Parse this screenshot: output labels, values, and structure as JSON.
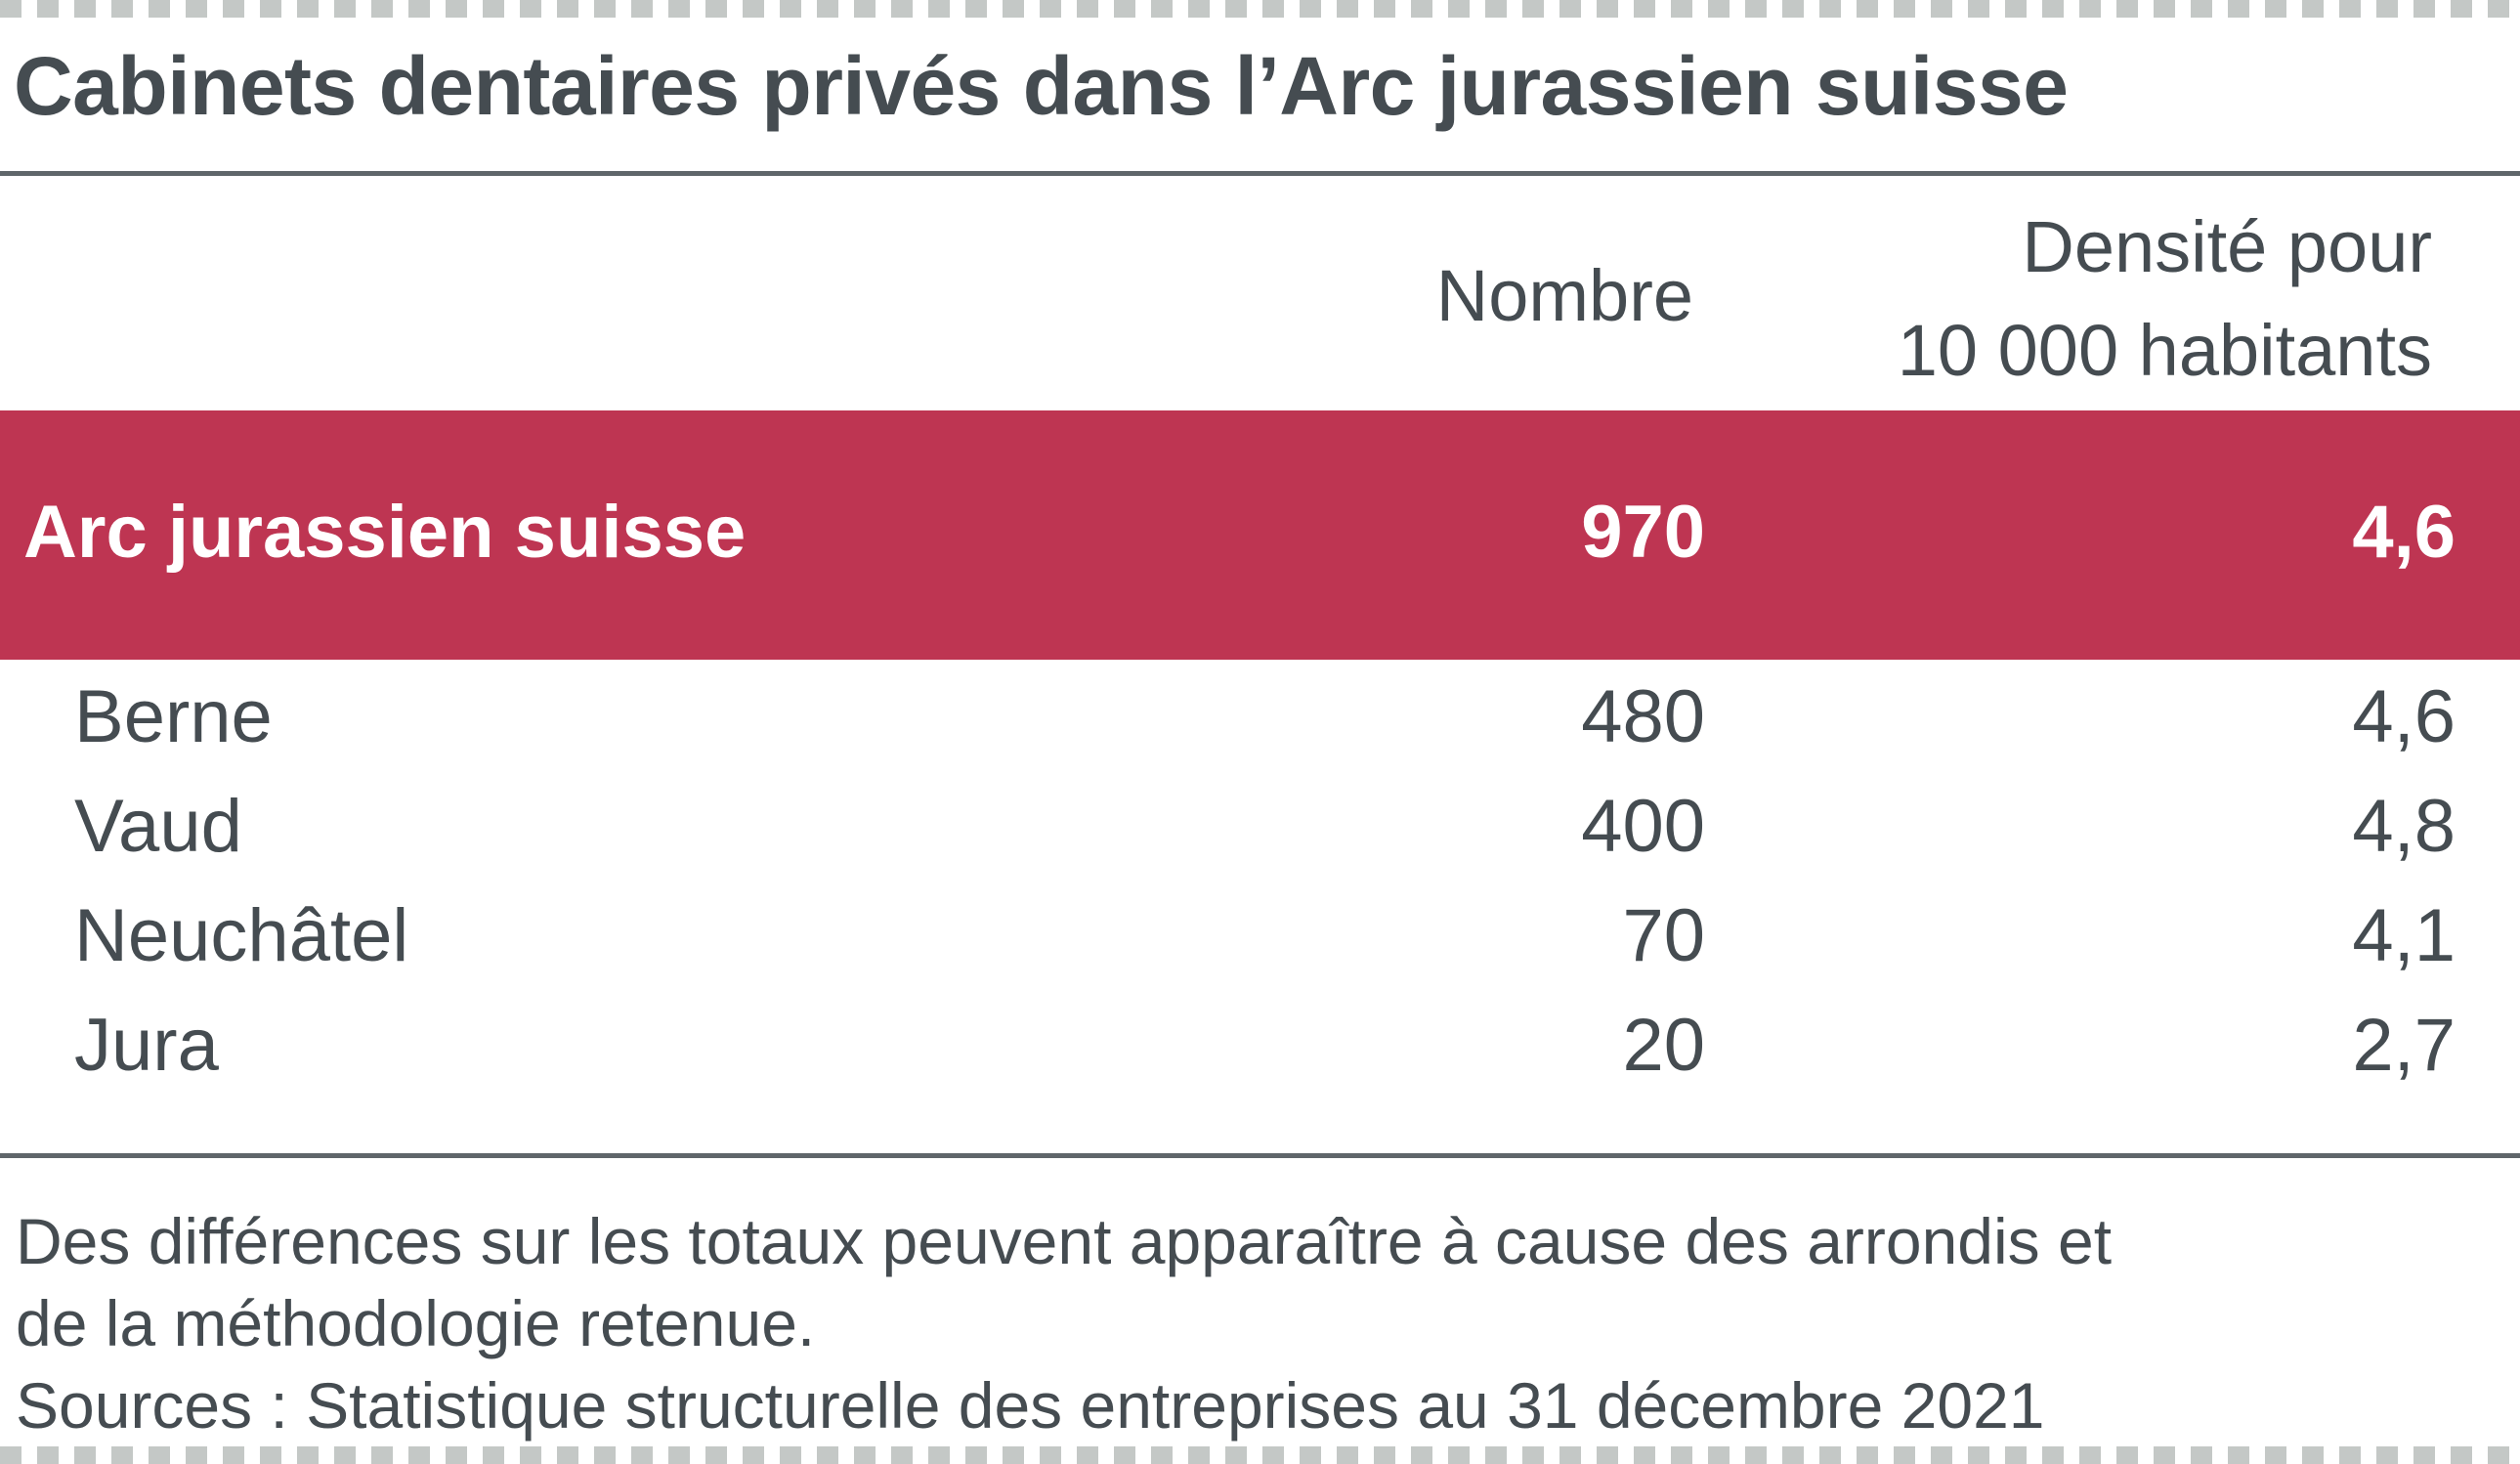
{
  "title": "Cabinets dentaires privés dans l’Arc jurassien suisse",
  "columns": {
    "nombre": "Nombre",
    "densite_line1": "Densité pour",
    "densite_line2": "10 000 habitants"
  },
  "total_row": {
    "label": "Arc jurassien suisse",
    "nombre": "970",
    "densite": "4,6"
  },
  "rows": [
    {
      "label": "Berne",
      "nombre": "480",
      "densite": "4,6"
    },
    {
      "label": "Vaud",
      "nombre": "400",
      "densite": "4,8"
    },
    {
      "label": "Neuchâtel",
      "nombre": "70",
      "densite": "4,1"
    },
    {
      "label": "Jura",
      "nombre": "20",
      "densite": "2,7"
    }
  ],
  "notes": {
    "line1": "Des différences sur les totaux peuvent apparaître à cause des arrondis et",
    "line2": "de la méthodologie retenue.",
    "sources": "Sources : Statistique structurelle des entreprises au 31 décembre 2021"
  },
  "colors": {
    "accent": "#be3552",
    "text": "#454c51",
    "rule": "#5f666a",
    "dash_border": "#c4c8c6"
  }
}
